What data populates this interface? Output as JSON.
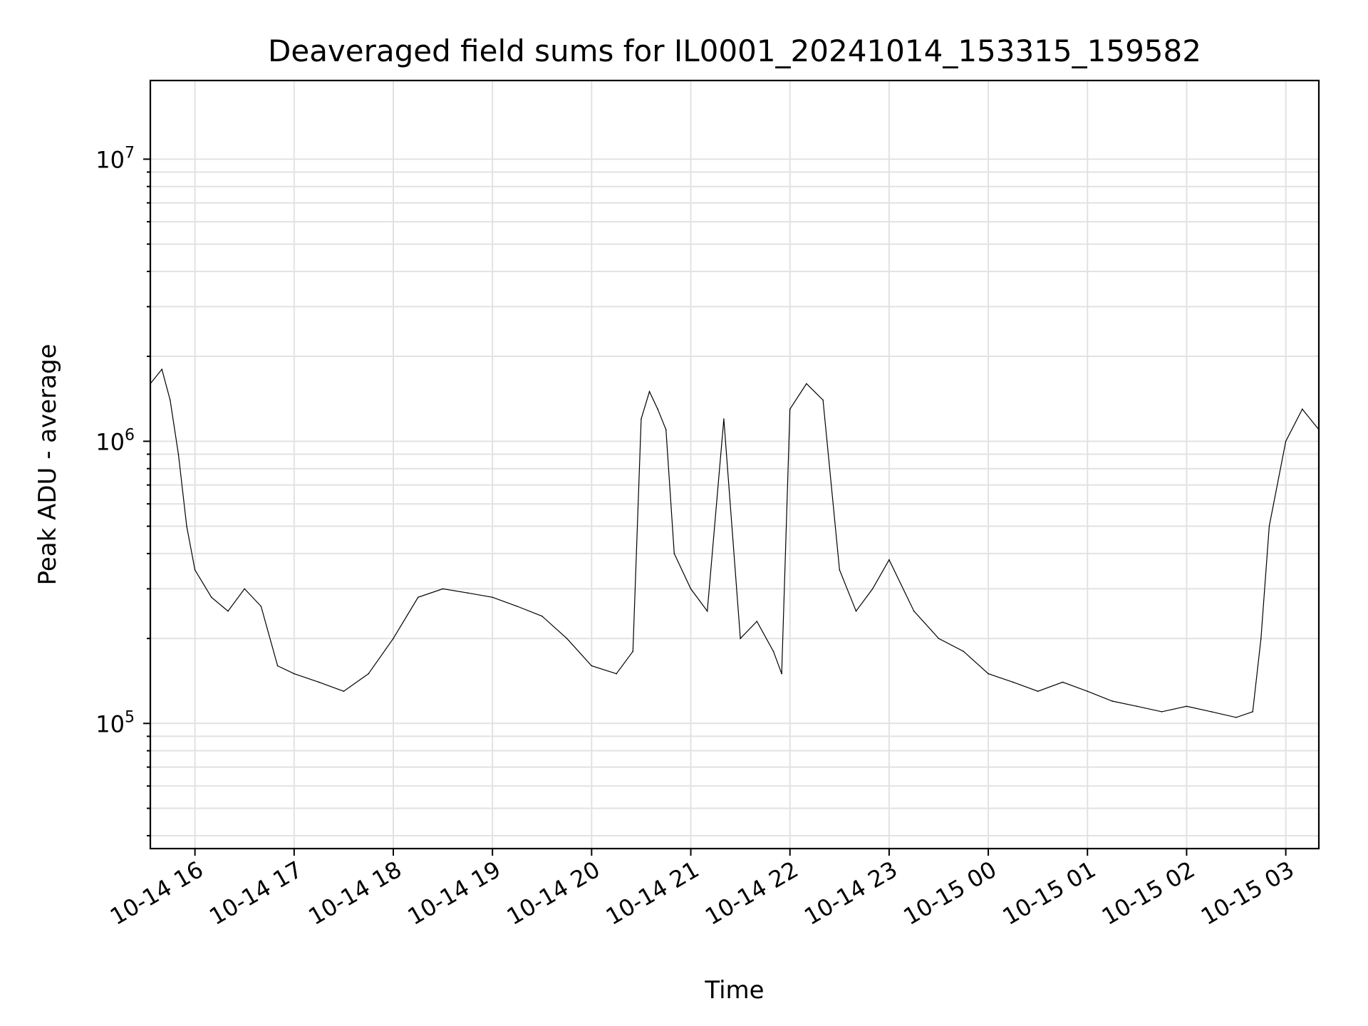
{
  "chart_data": {
    "type": "line",
    "title": "Deaveraged field sums for IL0001_20241014_153315_159582",
    "xlabel": "Time",
    "ylabel": "Peak ADU - average",
    "yscale": "log",
    "grid": true,
    "grid_minor": true,
    "legend": "none",
    "line_color": "#000000",
    "xlim": [
      "2024-10-14 15:33",
      "2024-10-15 03:20"
    ],
    "ylim": [
      36000,
      19000000
    ],
    "x_tick_labels": [
      "10-14 16",
      "10-14 17",
      "10-14 18",
      "10-14 19",
      "10-14 20",
      "10-14 21",
      "10-14 22",
      "10-14 23",
      "10-15 00",
      "10-15 01",
      "10-15 02",
      "10-15 03"
    ],
    "y_tick_labels": [
      {
        "value": 100000,
        "base": "10",
        "exp": "5"
      },
      {
        "value": 1000000,
        "base": "10",
        "exp": "6"
      },
      {
        "value": 10000000,
        "base": "10",
        "exp": "7"
      }
    ],
    "series": [
      {
        "x": [
          "2024-10-14 15:33",
          "2024-10-14 15:40",
          "2024-10-14 15:45",
          "2024-10-14 15:50",
          "2024-10-14 15:55",
          "2024-10-14 16:00",
          "2024-10-14 16:10",
          "2024-10-14 16:20",
          "2024-10-14 16:30",
          "2024-10-14 16:40",
          "2024-10-14 16:50",
          "2024-10-14 17:00",
          "2024-10-14 17:15",
          "2024-10-14 17:30",
          "2024-10-14 17:45",
          "2024-10-14 18:00",
          "2024-10-14 18:15",
          "2024-10-14 18:30",
          "2024-10-14 18:45",
          "2024-10-14 19:00",
          "2024-10-14 19:15",
          "2024-10-14 19:30",
          "2024-10-14 19:45",
          "2024-10-14 20:00",
          "2024-10-14 20:15",
          "2024-10-14 20:25",
          "2024-10-14 20:30",
          "2024-10-14 20:35",
          "2024-10-14 20:40",
          "2024-10-14 20:45",
          "2024-10-14 20:50",
          "2024-10-14 21:00",
          "2024-10-14 21:10",
          "2024-10-14 21:20",
          "2024-10-14 21:30",
          "2024-10-14 21:40",
          "2024-10-14 21:50",
          "2024-10-14 21:55",
          "2024-10-14 22:00",
          "2024-10-14 22:10",
          "2024-10-14 22:20",
          "2024-10-14 22:30",
          "2024-10-14 22:40",
          "2024-10-14 22:50",
          "2024-10-14 23:00",
          "2024-10-14 23:15",
          "2024-10-14 23:30",
          "2024-10-14 23:45",
          "2024-10-15 00:00",
          "2024-10-15 00:15",
          "2024-10-15 00:30",
          "2024-10-15 00:45",
          "2024-10-15 01:00",
          "2024-10-15 01:15",
          "2024-10-15 01:30",
          "2024-10-15 01:45",
          "2024-10-15 02:00",
          "2024-10-15 02:15",
          "2024-10-15 02:30",
          "2024-10-15 02:40",
          "2024-10-15 02:45",
          "2024-10-15 02:50",
          "2024-10-15 03:00",
          "2024-10-15 03:10",
          "2024-10-15 03:20"
        ],
        "y": [
          1600000,
          1800000,
          1400000,
          900000,
          500000,
          350000,
          280000,
          250000,
          300000,
          260000,
          160000,
          150000,
          140000,
          130000,
          150000,
          200000,
          280000,
          300000,
          290000,
          280000,
          260000,
          240000,
          200000,
          160000,
          150000,
          180000,
          1200000,
          1500000,
          1300000,
          1100000,
          400000,
          300000,
          250000,
          1200000,
          200000,
          230000,
          180000,
          150000,
          1300000,
          1600000,
          1400000,
          350000,
          250000,
          300000,
          380000,
          250000,
          200000,
          180000,
          150000,
          140000,
          130000,
          140000,
          130000,
          120000,
          115000,
          110000,
          115000,
          110000,
          105000,
          110000,
          200000,
          500000,
          1000000,
          1300000,
          1100000
        ]
      }
    ]
  }
}
